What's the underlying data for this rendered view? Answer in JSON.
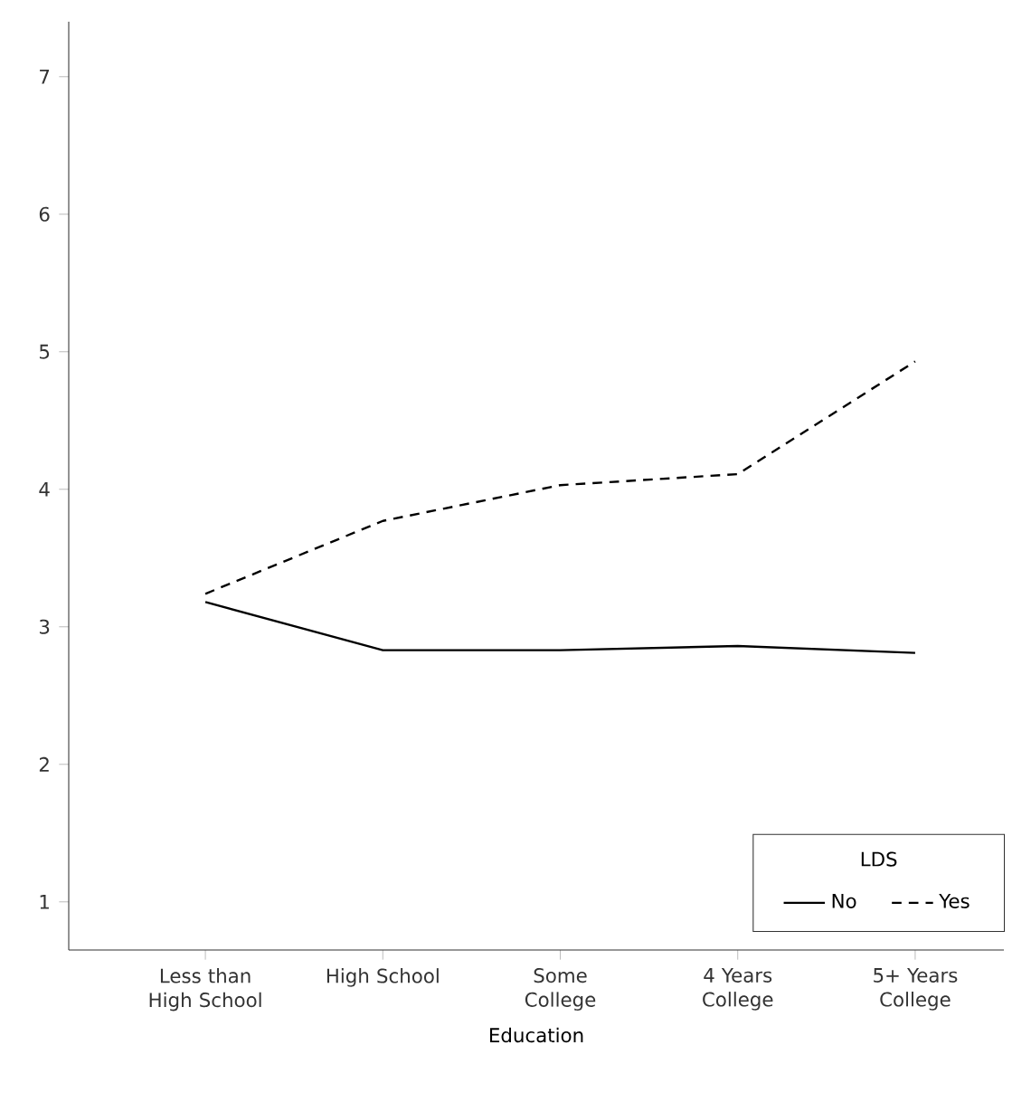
{
  "chart_data": {
    "type": "line",
    "xlabel": "Education",
    "categories": [
      "Less than High School",
      "High School",
      "Some College",
      "4 Years College",
      "5+ Years College"
    ],
    "ylim": [
      0.65,
      7.4
    ],
    "yticks": [
      1,
      2,
      3,
      4,
      5,
      6,
      7
    ],
    "legend": "bottom right",
    "legend_title": "LDS",
    "marker": "none",
    "series": [
      {
        "name": "No",
        "color": "#000000",
        "line_style": "solid",
        "values": [
          3.18,
          2.83,
          2.83,
          2.86,
          2.81
        ]
      },
      {
        "name": "Yes",
        "color": "#000000",
        "line_style": "dashed",
        "values": [
          3.24,
          3.77,
          4.03,
          4.11,
          4.93
        ]
      }
    ]
  }
}
